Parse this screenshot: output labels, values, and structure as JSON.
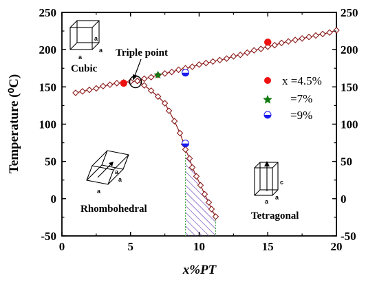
{
  "chart_data": {
    "type": "scatter",
    "xlabel": "x%PT",
    "ylabel": "Temperature (⁰C)",
    "xlim": [
      0,
      20
    ],
    "ylim": [
      -50,
      250
    ],
    "x_ticks": [
      0,
      5,
      10,
      15,
      20
    ],
    "y_ticks": [
      -50,
      0,
      50,
      100,
      150,
      200,
      250
    ],
    "y_ticks_right": [
      -50,
      0,
      50,
      100,
      150,
      200,
      250
    ],
    "series": [
      {
        "marker": "open-diamond",
        "color": "#8b1a1a",
        "x": [
          1.0,
          1.5,
          2.0,
          2.5,
          3.0,
          3.5,
          4.0,
          4.5,
          5.0,
          5.5
        ],
        "y": [
          142,
          144,
          146,
          148,
          151,
          153,
          155,
          156,
          157,
          158
        ]
      },
      {
        "marker": "open-diamond",
        "color": "#8b1a1a",
        "x": [
          5.5,
          6.0,
          6.5,
          7.0,
          7.5,
          8.0,
          8.5,
          9.0,
          9.5,
          10.0,
          10.5,
          11.0,
          11.5,
          12.0,
          12.5,
          13.0,
          13.5,
          14.0,
          14.5,
          15.0,
          15.5,
          16.0,
          16.5,
          17.0,
          17.5,
          18.0,
          18.5,
          19.0,
          19.5,
          20.0
        ],
        "y": [
          158,
          161,
          163,
          166,
          168,
          170,
          173,
          175,
          177,
          180,
          182,
          184,
          186,
          188,
          191,
          193,
          196,
          199,
          201,
          204,
          206,
          209,
          211,
          213,
          215,
          217,
          219,
          221,
          223,
          226
        ]
      },
      {
        "marker": "open-diamond",
        "color": "#8b1a1a",
        "x": [
          5.5,
          6.0,
          6.5,
          7.0,
          7.5,
          7.8,
          8.2,
          8.6,
          8.9,
          9.0,
          9.3,
          9.5,
          9.8,
          10.1,
          10.4,
          10.7,
          10.9,
          11.2
        ],
        "y": [
          158,
          152,
          145,
          137,
          128,
          118,
          104,
          88,
          73,
          66,
          54,
          42,
          30,
          18,
          6,
          -5,
          -14,
          -24
        ]
      },
      {
        "name": "x =4.5%",
        "marker": "filled-circle",
        "color": "#ee1111",
        "x": [
          4.5,
          15.0
        ],
        "y": [
          155,
          210
        ]
      },
      {
        "name": "=7%",
        "marker": "star",
        "color": "#117a11",
        "x": [
          7.0
        ],
        "y": [
          166
        ]
      },
      {
        "name": "=9%",
        "marker": "half-circle",
        "color": "#1a1aee",
        "x": [
          9.0,
          9.0
        ],
        "y": [
          169,
          74
        ]
      }
    ],
    "annotations": [
      {
        "text": "Triple point",
        "x": 5.5,
        "y": 158
      },
      {
        "text": "Cubic"
      },
      {
        "text": "Rhombohedral"
      },
      {
        "text": "Tetragonal"
      }
    ],
    "legend": {
      "placement": "top-right",
      "entries": [
        "x =4.5%",
        "=7%",
        "=9%"
      ]
    },
    "hatched_region": {
      "x": [
        9.0,
        9.0,
        9.3,
        9.5,
        9.8,
        10.1,
        10.4,
        10.7,
        10.9,
        11.2,
        11.2
      ],
      "y": [
        -50,
        66,
        54,
        42,
        30,
        18,
        6,
        -5,
        -14,
        -24,
        -50
      ]
    }
  },
  "annotations": {
    "triple_point": "Triple point",
    "cubic": "Cubic",
    "rhombohedral": "Rhombohedral",
    "tetragonal": "Tetragonal"
  },
  "cell_labels": {
    "a": "a",
    "c": "c"
  },
  "legend": {
    "entries": [
      {
        "label": "x =4.5%",
        "marker": "filled-circle",
        "color": "#ee1111"
      },
      {
        "label": "=7%",
        "marker": "star",
        "color": "#117a11"
      },
      {
        "label": "=9%",
        "marker": "half-circle",
        "color": "#1a1aee"
      }
    ]
  },
  "colors": {
    "line": "#8b1a1a",
    "hatch": "#5a2db0",
    "hatch_border": "#44aa44"
  }
}
